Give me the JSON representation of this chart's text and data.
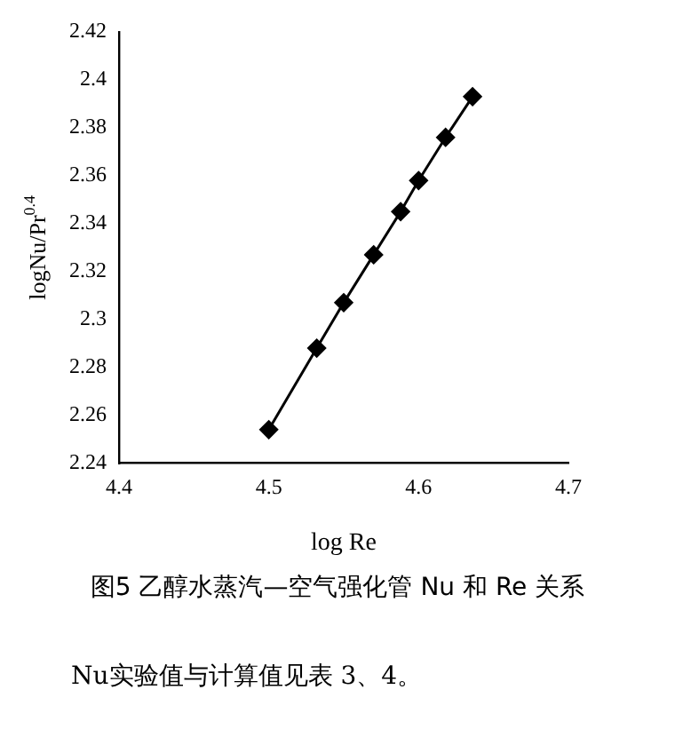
{
  "chart_data": {
    "type": "line",
    "xlabel": "log Re",
    "ylabel": "logNu/Pr$^{0.4}$",
    "x": [
      4.5,
      4.532,
      4.55,
      4.57,
      4.588,
      4.6,
      4.618,
      4.636
    ],
    "series": [
      {
        "color": "#000000",
        "values": [
          2.254,
          2.288,
          2.307,
          2.327,
          2.345,
          2.358,
          2.376,
          2.393
        ]
      }
    ],
    "xlim": [
      4.4,
      4.7
    ],
    "xticks": [
      4.4,
      4.5,
      4.6,
      4.7
    ],
    "ylim": [
      2.24,
      2.42
    ],
    "yticks": [
      2.24,
      2.26,
      2.28,
      2.3,
      2.32,
      2.34,
      2.36,
      2.38,
      2.4,
      2.42
    ],
    "grid": false,
    "legend": false,
    "marker": "diamond",
    "line_style": "solid",
    "annotations": [
      "图5 乙醇水蒸汽—空气强化管 Nu 和 Re 关系",
      "Nu实验值与计算值见表 3、4。"
    ]
  }
}
